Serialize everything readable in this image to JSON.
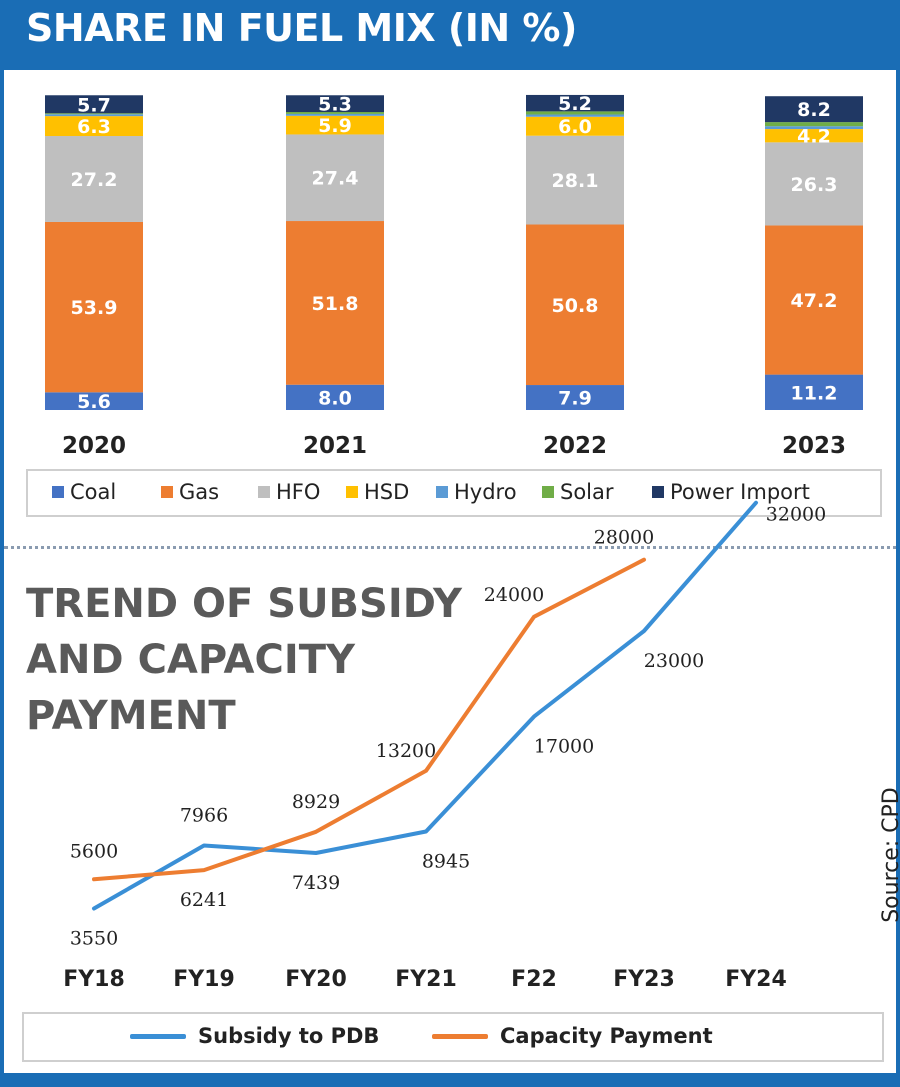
{
  "title": "SHARE IN FUEL MIX (IN %)",
  "subtitle_lines": [
    "TREND OF SUBSIDY",
    "AND CAPACITY",
    "PAYMENT"
  ],
  "source": "Source: CPD",
  "colors": {
    "brand": "#1a6db5",
    "Coal": "#4472c4",
    "Gas": "#ed7d31",
    "HFO": "#bfbfbf",
    "HSD": "#ffc000",
    "Hydro": "#5b9bd5",
    "Solar": "#70ad47",
    "Power Import": "#203864",
    "subsidy_line": "#3a8fd6",
    "capacity_line": "#ed7d31"
  },
  "chart_data": [
    {
      "type": "bar",
      "stacked": true,
      "title": "SHARE IN FUEL MIX (IN %)",
      "categories": [
        "2020",
        "2021",
        "2022",
        "2023"
      ],
      "ylim": [
        0,
        100
      ],
      "legend_position": "bottom",
      "series": [
        {
          "name": "Coal",
          "values": [
            5.6,
            8.0,
            7.9,
            11.2
          ],
          "labels": [
            "5.6",
            "8.0",
            "7.9",
            "11.2"
          ]
        },
        {
          "name": "Gas",
          "values": [
            53.9,
            51.8,
            50.8,
            47.2
          ],
          "labels": [
            "53.9",
            "51.8",
            "50.8",
            "47.2"
          ]
        },
        {
          "name": "HFO",
          "values": [
            27.2,
            27.4,
            28.1,
            26.3
          ],
          "labels": [
            "27.2",
            "27.4",
            "28.1",
            "26.3"
          ]
        },
        {
          "name": "HSD",
          "values": [
            6.3,
            5.9,
            6.0,
            4.2
          ],
          "labels": [
            "6.3",
            "5.9",
            "6.0",
            "4.2"
          ]
        },
        {
          "name": "Hydro",
          "values": [
            0.6,
            0.6,
            0.7,
            0.9
          ],
          "labels": [
            "",
            "",
            "",
            ""
          ]
        },
        {
          "name": "Solar",
          "values": [
            0.3,
            0.6,
            1.0,
            1.3
          ],
          "labels": [
            "",
            "",
            "",
            ""
          ]
        },
        {
          "name": "Power Import",
          "values": [
            5.7,
            5.3,
            5.2,
            8.2
          ],
          "labels": [
            "5.7",
            "5.3",
            "5.2",
            "8.2"
          ]
        }
      ]
    },
    {
      "type": "line",
      "title": "TREND OF SUBSIDY AND CAPACITY PAYMENT",
      "categories": [
        "FY18",
        "FY19",
        "FY20",
        "FY21",
        "F22",
        "FY23",
        "FY24"
      ],
      "ylim": [
        0,
        33000
      ],
      "legend_position": "bottom",
      "series": [
        {
          "name": "Subsidy to PDB",
          "values": [
            3550,
            7966,
            7439,
            8945,
            17000,
            23000,
            32000
          ]
        },
        {
          "name": "Capacity Payment",
          "values": [
            5600,
            6241,
            8929,
            13200,
            24000,
            28000,
            null
          ]
        }
      ]
    }
  ]
}
